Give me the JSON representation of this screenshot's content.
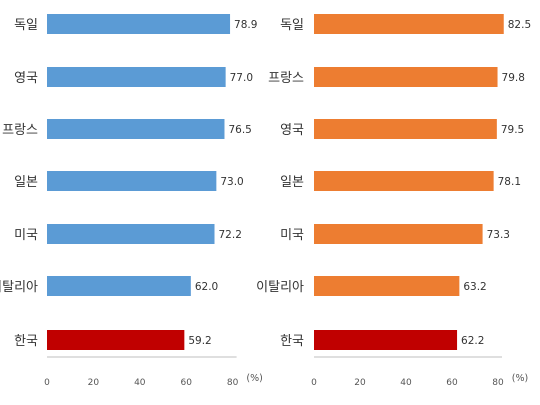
{
  "chart_data": [
    {
      "type": "bar",
      "orientation": "horizontal",
      "categories": [
        "독일",
        "영국",
        "프랑스",
        "일본",
        "미국",
        "이탈리아",
        "한국"
      ],
      "values": [
        78.9,
        77.0,
        76.5,
        73.0,
        72.2,
        62.0,
        59.2
      ],
      "value_labels": [
        "78.9",
        "77.0",
        "76.5",
        "73.0",
        "72.2",
        "62.0",
        "59.2"
      ],
      "xlim": [
        0,
        80
      ],
      "xticks": [
        "0",
        "20",
        "40",
        "60",
        "80"
      ],
      "unit": "(%)",
      "bar_color": "#5b9bd5",
      "highlight_color": "#c00000",
      "highlight_index": 6,
      "grid": false
    },
    {
      "type": "bar",
      "orientation": "horizontal",
      "categories": [
        "독일",
        "프랑스",
        "영국",
        "일본",
        "미국",
        "이탈리아",
        "한국"
      ],
      "values": [
        82.5,
        79.8,
        79.5,
        78.1,
        73.3,
        63.2,
        62.2
      ],
      "value_labels": [
        "82.5",
        "79.8",
        "79.5",
        "78.1",
        "73.3",
        "63.2",
        "62.2"
      ],
      "xlim": [
        0,
        80
      ],
      "xticks": [
        "0",
        "20",
        "40",
        "60",
        "80"
      ],
      "unit": "(%)",
      "bar_color": "#ed7d31",
      "highlight_color": "#c00000",
      "highlight_index": 6,
      "grid": false
    }
  ]
}
